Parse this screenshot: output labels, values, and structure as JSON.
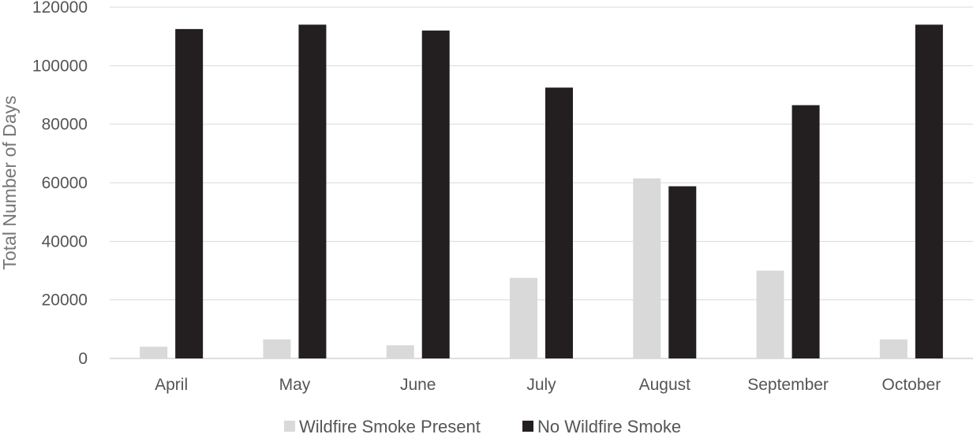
{
  "chart_data": {
    "type": "bar",
    "title": "",
    "xlabel": "",
    "ylabel": "Total Number of Days",
    "ylim": [
      0,
      120000
    ],
    "yticks": [
      0,
      20000,
      40000,
      60000,
      80000,
      100000,
      120000
    ],
    "ytick_labels": [
      "0",
      "20000",
      "40000",
      "60000",
      "80000",
      "100000",
      "120000"
    ],
    "grid": true,
    "legend_position": "bottom",
    "categories": [
      "April",
      "May",
      "June",
      "July",
      "August",
      "September",
      "October"
    ],
    "series": [
      {
        "name": "Wildfire Smoke Present",
        "color": "#d9d9d9",
        "values": [
          4000,
          6500,
          4500,
          27500,
          61500,
          30000,
          6500
        ]
      },
      {
        "name": "No Wildfire Smoke",
        "color": "#231f20",
        "values": [
          112500,
          114000,
          112000,
          92500,
          58800,
          86500,
          114000
        ]
      }
    ]
  }
}
